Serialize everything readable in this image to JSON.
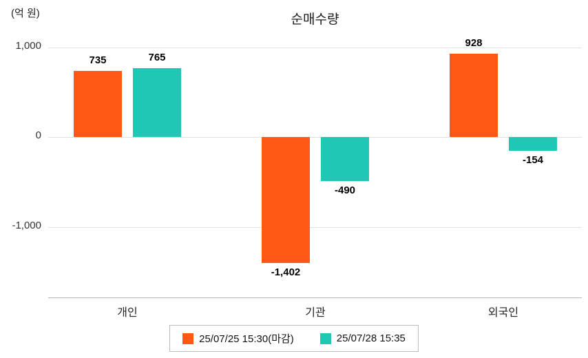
{
  "title": "순매수량",
  "unit_label": "(억 원)",
  "chart_data": {
    "type": "bar",
    "title": "순매수량",
    "ylabel": "(억 원)",
    "xlabel": "",
    "categories": [
      "개인",
      "기관",
      "외국인"
    ],
    "series": [
      {
        "name": "25/07/25 15:30(마감)",
        "color": "#ff5714",
        "values": [
          735,
          -1402,
          928
        ],
        "labels": [
          "735",
          "-1,402",
          "928"
        ]
      },
      {
        "name": "25/07/28 15:35",
        "color": "#1ec8b4",
        "values": [
          765,
          -490,
          -154
        ],
        "labels": [
          "765",
          "-490",
          "-154"
        ]
      }
    ],
    "yticks": [
      {
        "value": 1000,
        "label": "1,000"
      },
      {
        "value": 0,
        "label": "0"
      },
      {
        "value": -1000,
        "label": "-1,000"
      }
    ],
    "ylim": [
      -1600,
      1150
    ],
    "grid": true,
    "legend_position": "bottom"
  }
}
